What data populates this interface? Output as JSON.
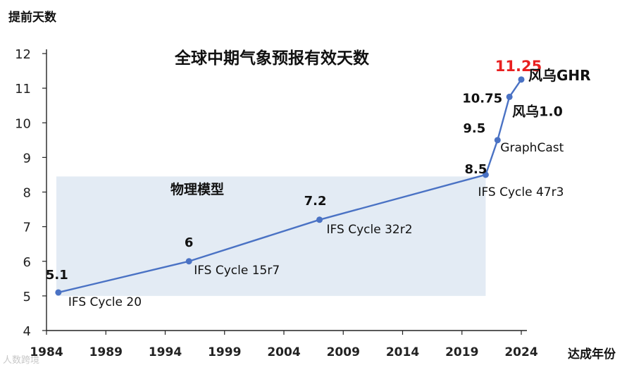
{
  "chart_data": {
    "type": "line",
    "title": "全球中期气象预报有效天数",
    "ylabel": "提前天数",
    "xlabel": "达成年份",
    "xlim": [
      1984,
      2024
    ],
    "ylim": [
      4,
      12
    ],
    "x_ticks": [
      "1984",
      "1989",
      "1994",
      "1999",
      "2004",
      "2009",
      "2014",
      "2019",
      "2024"
    ],
    "y_ticks": [
      "4",
      "5",
      "6",
      "7",
      "8",
      "9",
      "10",
      "11",
      "12"
    ],
    "grid": false,
    "region": {
      "label": "物理模型",
      "x": [
        1984,
        2021
      ],
      "y": [
        5,
        8.45
      ]
    },
    "points": [
      {
        "x": 1985,
        "y": 5.1,
        "value_label": "5.1",
        "name": "IFS Cycle 20"
      },
      {
        "x": 1996,
        "y": 6,
        "value_label": "6",
        "name": "IFS Cycle 15r7"
      },
      {
        "x": 2007,
        "y": 7.2,
        "value_label": "7.2",
        "name": "IFS Cycle 32r2"
      },
      {
        "x": 2021,
        "y": 8.5,
        "value_label": "8.5",
        "name": "IFS Cycle 47r3"
      },
      {
        "x": 2022,
        "y": 9.5,
        "value_label": "9.5",
        "name": "GraphCast"
      },
      {
        "x": 2023,
        "y": 10.75,
        "value_label": "10.75",
        "name": "风乌1.0"
      },
      {
        "x": 2024,
        "y": 11.25,
        "value_label": "11.25",
        "name": "风乌GHR"
      }
    ],
    "colors": {
      "line": "#4a72c4",
      "region": "#e3ebf4",
      "highlight": "#e82020",
      "axis": "#222222"
    }
  },
  "watermark": "人数跨境"
}
